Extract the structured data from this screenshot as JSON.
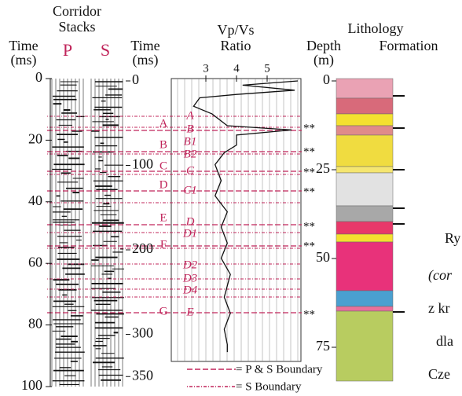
{
  "headers": {
    "corridor": "Corridor",
    "stacks": "Stacks",
    "time1": "Time",
    "time1_unit": "(ms)",
    "p": "P",
    "s": "S",
    "time2": "Time",
    "time2_unit": "(ms)",
    "vpvs": "Vp/Vs",
    "ratio": "Ratio",
    "lithology": "Lithology",
    "depth": "Depth",
    "depth_unit": "(m)",
    "formation": "Formation"
  },
  "time_axis_1": [
    0,
    20,
    40,
    60,
    80,
    100
  ],
  "time_axis_2": [
    0,
    100,
    200,
    300,
    350
  ],
  "ratio_axis": [
    3,
    4,
    5
  ],
  "depth_axis": [
    0,
    25,
    50,
    75
  ],
  "boundary_labels": [
    "A",
    "B",
    "C",
    "D",
    "E",
    "F",
    "G"
  ],
  "unit_labels": [
    "A",
    "B",
    "B1",
    "B2",
    "C",
    "C1",
    "D",
    "D1",
    "D2",
    "D3",
    "D4",
    "E"
  ],
  "markers": [
    "**",
    "**",
    "**",
    "**",
    "**",
    "**",
    "**"
  ],
  "vpvs_curve": {
    "time_ms": [
      0,
      5,
      11,
      16,
      20,
      30,
      39,
      53,
      58,
      64,
      76,
      85,
      99,
      118,
      136,
      155,
      173,
      192,
      210,
      229,
      256,
      275,
      294,
      312,
      321
    ],
    "ratio": [
      6.0,
      4.2,
      5.9,
      4.0,
      2.8,
      2.6,
      3.2,
      3.7,
      5.8,
      4.0,
      4.0,
      3.6,
      3.3,
      3.5,
      3.3,
      3.7,
      3.5,
      3.7,
      3.5,
      3.8,
      3.6,
      3.8,
      3.6,
      3.7,
      3.7
    ]
  },
  "legend": {
    "ps": "= P & S Boundary",
    "s": "= S Boundary"
  },
  "caption_fragments": [
    "Ry",
    "(cor",
    "z kr",
    "dla",
    "Cze"
  ]
}
